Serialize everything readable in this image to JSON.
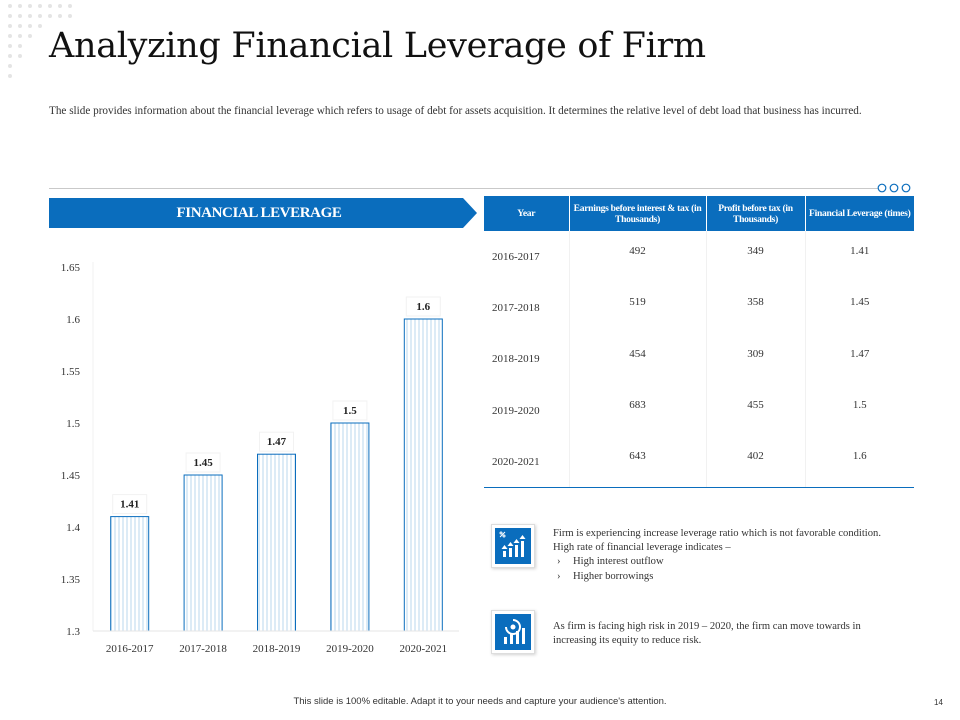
{
  "title": "Analyzing Financial Leverage of Firm",
  "intro": "The slide provides information about the financial leverage which refers to usage of debt for assets acquisition. It determines the relative level of debt load that business has incurred.",
  "banner": "FINANCIAL LEVERAGE",
  "colors": {
    "accent": "#0a6dbd",
    "bar_fill": "#e9f4fb",
    "bar_stroke": "#0a6dbd"
  },
  "chart_data": {
    "type": "bar",
    "title": "",
    "xlabel": "",
    "ylabel": "",
    "categories": [
      "2016-2017",
      "2017-2018",
      "2018-2019",
      "2019-2020",
      "2020-2021"
    ],
    "values": [
      1.41,
      1.45,
      1.47,
      1.5,
      1.6
    ],
    "value_labels": [
      "1.41",
      "1.45",
      "1.47",
      "1.5",
      "1.6"
    ],
    "yticks": [
      "1.3",
      "1.35",
      "1.4",
      "1.45",
      "1.5",
      "1.55",
      "1.6",
      "1.65"
    ],
    "ylim": [
      1.3,
      1.65
    ],
    "grid": false,
    "legend": "none"
  },
  "table": {
    "headers": [
      "Year",
      "Earnings before interest & tax (in Thousands)",
      "Profit before tax (in Thousands)",
      "Financial Leverage (times)"
    ],
    "rows": [
      [
        "2016-2017",
        "492",
        "349",
        "1.41"
      ],
      [
        "2017-2018",
        "519",
        "358",
        "1.45"
      ],
      [
        "2018-2019",
        "454",
        "309",
        "1.47"
      ],
      [
        "2019-2020",
        "683",
        "455",
        "1.5"
      ],
      [
        "2020-2021",
        "643",
        "402",
        "1.6"
      ]
    ]
  },
  "notes": {
    "first": {
      "icon": "growth-chart-icon",
      "line1": "Firm is experiencing increase leverage ratio which is not favorable condition.",
      "line2": "High rate of financial leverage indicates –",
      "bullet_marker": "›",
      "bullets": [
        "High interest outflow",
        "Higher borrowings"
      ]
    },
    "second": {
      "icon": "risk-analytics-icon",
      "text": "As firm is facing high risk in 2019 – 2020, the firm can move towards in increasing its equity to reduce risk."
    }
  },
  "footer": "This slide is 100% editable. Adapt it to your needs and capture your audience's attention.",
  "page_number": "14"
}
